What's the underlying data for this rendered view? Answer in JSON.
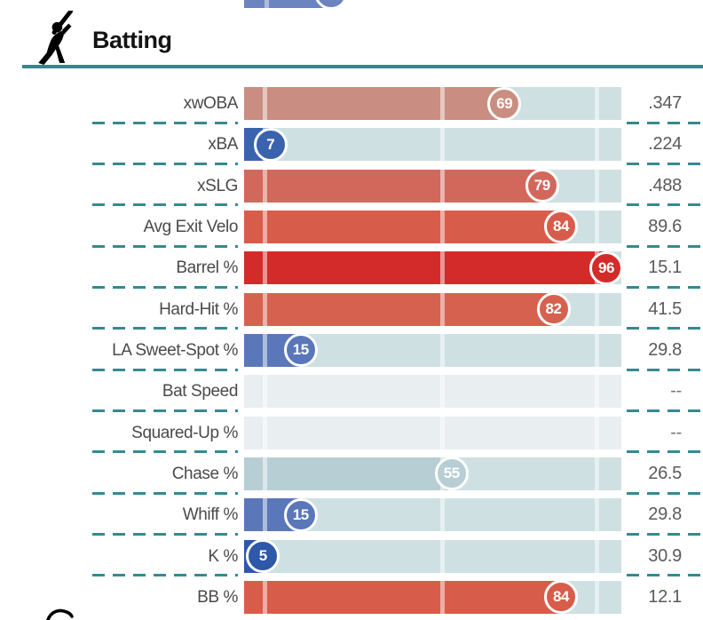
{
  "header": {
    "title": "Batting",
    "icon": "batter-swinging-icon",
    "rule_color": "#2a8c8e"
  },
  "colors": {
    "track": "#cfe0e2",
    "track_empty": "#e9eef1",
    "dash_teal": "#37898f",
    "label_text": "#4a4a4a",
    "value_text": "#5a5a5a"
  },
  "top_partial_bar": {
    "percentile": 23,
    "color": "#6b83bf"
  },
  "chart_data": {
    "type": "bar",
    "orientation": "horizontal",
    "title": "Batting",
    "scale": "MLB percentile rank 0-100",
    "value_column": "stat value",
    "tick_percentiles": [
      5,
      52,
      93
    ],
    "rows": [
      {
        "label": "xwOBA",
        "percentile": 69,
        "value": ".347",
        "color": "#c98e81"
      },
      {
        "label": "xBA",
        "percentile": 7,
        "value": ".224",
        "color": "#3a63ae"
      },
      {
        "label": "xSLG",
        "percentile": 79,
        "value": ".488",
        "color": "#d2685b"
      },
      {
        "label": "Avg Exit Velo",
        "percentile": 84,
        "value": "89.6",
        "color": "#d85c4a"
      },
      {
        "label": "Barrel %",
        "percentile": 96,
        "value": "15.1",
        "color": "#d32b2a"
      },
      {
        "label": "Hard-Hit %",
        "percentile": 82,
        "value": "41.5",
        "color": "#d6614f"
      },
      {
        "label": "LA Sweet-Spot %",
        "percentile": 15,
        "value": "29.8",
        "color": "#5a77b9"
      },
      {
        "label": "Bat Speed",
        "percentile": null,
        "value": "--",
        "color": null
      },
      {
        "label": "Squared-Up %",
        "percentile": null,
        "value": "--",
        "color": null
      },
      {
        "label": "Chase %",
        "percentile": 55,
        "value": "26.5",
        "color": "#b6ced4"
      },
      {
        "label": "Whiff %",
        "percentile": 15,
        "value": "29.8",
        "color": "#5a77b9"
      },
      {
        "label": "K %",
        "percentile": 5,
        "value": "30.9",
        "color": "#2e58a8"
      },
      {
        "label": "BB %",
        "percentile": 84,
        "value": "12.1",
        "color": "#d85c4a"
      }
    ]
  }
}
